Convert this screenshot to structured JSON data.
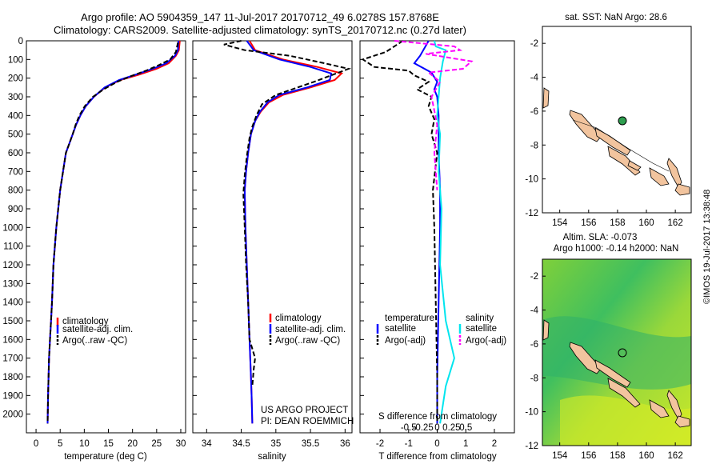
{
  "header": {
    "title_line1": "Argo profile: AO 5904359_147 11-Jul-2017 20170712_49 6.0278S 157.8768E",
    "title_line2": "Climatology: CARS2009. Satellite-adjusted climatology: synTS_20170712.nc (0.27d later)"
  },
  "colors": {
    "climatology": "#ff0000",
    "satellite": "#0000ff",
    "argo": "#000000",
    "sal_satellite": "#00e5ee",
    "sal_argo": "#ff00ff",
    "land": "#f2c49e",
    "argo_marker": "#2e9e4f"
  },
  "chart_data": [
    {
      "type": "line",
      "panel": "temperature",
      "xlabel": "temperature (deg C)",
      "xticks": [
        0,
        5,
        10,
        15,
        20,
        25,
        30
      ],
      "xlim": [
        -2,
        31
      ],
      "ylim": [
        2100,
        0
      ],
      "yticks": [
        0,
        100,
        200,
        300,
        400,
        500,
        600,
        700,
        800,
        900,
        1000,
        1100,
        1200,
        1300,
        1400,
        1500,
        1600,
        1700,
        1800,
        1900,
        2000
      ],
      "legend": [
        "climatology",
        "satellite-adj. clim.",
        "Argo(..raw -QC)"
      ],
      "series": [
        {
          "name": "climatology",
          "x": [
            29.8,
            29.6,
            29.0,
            27.5,
            25.0,
            21.5,
            17.5,
            14.3,
            12.0,
            10.3,
            9.2,
            8.3,
            7.6,
            6.9,
            6.2,
            5.6,
            5.0,
            4.6,
            4.2,
            3.9,
            3.6,
            3.3,
            3.1,
            2.9,
            2.7,
            2.5,
            2.4
          ],
          "y": [
            0,
            50,
            80,
            120,
            150,
            180,
            210,
            250,
            300,
            350,
            400,
            450,
            500,
            550,
            600,
            700,
            800,
            900,
            1000,
            1100,
            1200,
            1400,
            1500,
            1600,
            1700,
            1900,
            2050
          ]
        },
        {
          "name": "satellite-adj. clim.",
          "x": [
            29.5,
            29.4,
            28.8,
            27.0,
            24.2,
            20.8,
            17.2,
            14.2,
            12.0,
            10.3,
            9.2,
            8.3,
            7.6,
            6.9,
            6.2,
            5.6,
            5.0,
            4.6,
            4.2,
            3.9,
            3.6,
            3.3,
            3.1,
            2.9,
            2.7,
            2.5,
            2.4
          ],
          "y": [
            0,
            50,
            80,
            120,
            150,
            180,
            210,
            250,
            300,
            350,
            400,
            450,
            500,
            550,
            600,
            700,
            800,
            900,
            1000,
            1100,
            1200,
            1400,
            1500,
            1600,
            1700,
            1900,
            2050
          ]
        },
        {
          "name": "Argo(..raw -QC)",
          "x": [
            29.4,
            29.0,
            27.8,
            25.5,
            22.8,
            19.6,
            16.8,
            14.0,
            11.8,
            10.1,
            9.0,
            8.2,
            7.6,
            6.9,
            6.2,
            5.6,
            5.0,
            4.6,
            4.2,
            3.9,
            3.6,
            3.3,
            3.1,
            2.9,
            2.7,
            2.5,
            2.4
          ],
          "y": [
            10,
            60,
            100,
            130,
            160,
            190,
            220,
            260,
            300,
            350,
            400,
            450,
            500,
            550,
            600,
            700,
            800,
            900,
            1000,
            1100,
            1200,
            1400,
            1500,
            1600,
            1700,
            1900,
            2050
          ]
        }
      ]
    },
    {
      "type": "line",
      "panel": "salinity",
      "xlabel": "salinity",
      "xticks": [
        34,
        34.5,
        35,
        35.5,
        36
      ],
      "xlim": [
        33.8,
        36.1
      ],
      "ylim": [
        2100,
        0
      ],
      "legend": [
        "climatology",
        "satellite-adj. clim.",
        "Argo(..raw -QC)"
      ],
      "annotations": [
        "US ARGO PROJECT",
        "PI: DEAN ROEMMICH"
      ],
      "series": [
        {
          "name": "climatology",
          "x": [
            34.62,
            34.7,
            35.1,
            35.6,
            35.95,
            35.85,
            35.5,
            35.1,
            34.9,
            34.78,
            34.7,
            34.64,
            34.6,
            34.57,
            34.55,
            34.56,
            34.58,
            34.6,
            34.62,
            34.63,
            34.64,
            34.65,
            34.66
          ],
          "y": [
            0,
            50,
            100,
            140,
            175,
            210,
            250,
            290,
            330,
            380,
            430,
            500,
            600,
            700,
            800,
            1000,
            1200,
            1400,
            1600,
            1700,
            1800,
            1900,
            2050
          ]
        },
        {
          "name": "satellite-adj. clim.",
          "x": [
            34.58,
            34.68,
            35.05,
            35.5,
            35.8,
            35.78,
            35.45,
            35.05,
            34.88,
            34.77,
            34.7,
            34.64,
            34.6,
            34.57,
            34.55,
            34.56,
            34.58,
            34.6,
            34.62,
            34.63,
            34.64,
            34.65,
            34.66
          ],
          "y": [
            0,
            50,
            100,
            140,
            175,
            210,
            250,
            290,
            330,
            380,
            430,
            500,
            600,
            700,
            800,
            1000,
            1200,
            1400,
            1600,
            1700,
            1800,
            1900,
            2050
          ]
        },
        {
          "name": "Argo(..raw -QC)",
          "x": [
            34.5,
            34.25,
            34.55,
            35.2,
            35.7,
            36.05,
            35.55,
            35.0,
            34.8,
            34.72,
            34.66,
            34.62,
            34.58,
            34.55,
            34.53,
            34.55,
            34.57,
            34.6,
            34.62,
            34.7,
            34.68,
            34.66
          ],
          "y": [
            0,
            20,
            50,
            80,
            120,
            150,
            220,
            290,
            340,
            400,
            460,
            520,
            620,
            720,
            820,
            1000,
            1200,
            1400,
            1600,
            1700,
            1760,
            1850
          ]
        }
      ]
    },
    {
      "type": "line",
      "panel": "difference",
      "xlabel": "T difference from climatology",
      "xlabel_top": "S difference from climatology",
      "xticks_t": [
        -2,
        -1,
        0,
        1,
        2
      ],
      "xticks_s": [
        "-0.5",
        "-0.25",
        "0",
        "0.25",
        "0.5"
      ],
      "xlim": [
        -2.7,
        2.7
      ],
      "ylim": [
        2100,
        0
      ],
      "legend_headers": [
        "temperature",
        "salinity"
      ],
      "legend": [
        "satellite",
        "Argo(-adj)",
        "satellite",
        "Argo(-adj)"
      ],
      "series": [
        {
          "name": "satellite",
          "x": [
            -0.3,
            -0.6,
            -0.8,
            -0.2,
            0.0,
            -0.1,
            0.0,
            0.05,
            0.05,
            0.1,
            0.1,
            0.05,
            0.0,
            0.0
          ],
          "y": [
            0,
            80,
            120,
            170,
            220,
            260,
            300,
            400,
            600,
            800,
            1000,
            1400,
            1800,
            2050
          ]
        },
        {
          "name": "Argo(-adj)",
          "x": [
            -1.2,
            -1.8,
            -2.6,
            -2.2,
            -1.0,
            -0.8,
            -0.3,
            -0.7,
            -0.2,
            -0.3,
            -0.1,
            -0.2,
            0.0,
            -0.15,
            -0.1,
            -0.05,
            0.0,
            0.0
          ],
          "y": [
            0,
            60,
            100,
            140,
            160,
            185,
            220,
            260,
            300,
            350,
            420,
            500,
            600,
            800,
            1000,
            1400,
            1800,
            2050
          ]
        },
        {
          "name": "satellite",
          "x": [
            -0.1,
            -0.05,
            0.3,
            0.2,
            0.1,
            0.05,
            0.0,
            0.1,
            0.05,
            0.15,
            0.1,
            0.3,
            0.6,
            0.3,
            0.1
          ],
          "y": [
            0,
            30,
            50,
            110,
            200,
            300,
            400,
            500,
            700,
            900,
            1200,
            1500,
            1700,
            1850,
            2050
          ]
        },
        {
          "name": "Argo(-adj)",
          "x": [
            -1.5,
            0.6,
            0.8,
            -0.4,
            1.2,
            0.9,
            -0.3,
            0.1,
            -0.2,
            0.0,
            -0.1,
            0.0
          ],
          "y": [
            0,
            30,
            50,
            70,
            110,
            150,
            170,
            220,
            300,
            450,
            600,
            800
          ]
        }
      ]
    }
  ],
  "maps": {
    "sst": {
      "title": "sat. SST: NaN Argo: 28.6",
      "xticks": [
        154,
        156,
        158,
        160,
        162
      ],
      "yticks": [
        -2,
        -4,
        -6,
        -8,
        -10,
        -12
      ],
      "argo_point": [
        157.88,
        -6.03
      ]
    },
    "sla": {
      "title_line1": "Altim. SLA: -0.073",
      "title_line2": "Argo h1000: -0.14 h2000: NaN",
      "xticks": [
        154,
        156,
        158,
        160,
        162
      ],
      "yticks": [
        -2,
        -4,
        -6,
        -8,
        -10,
        -12
      ],
      "argo_point": [
        157.88,
        -6.03
      ]
    }
  },
  "stamp": "©IMOS 19-Jul-2017 13:38:48"
}
